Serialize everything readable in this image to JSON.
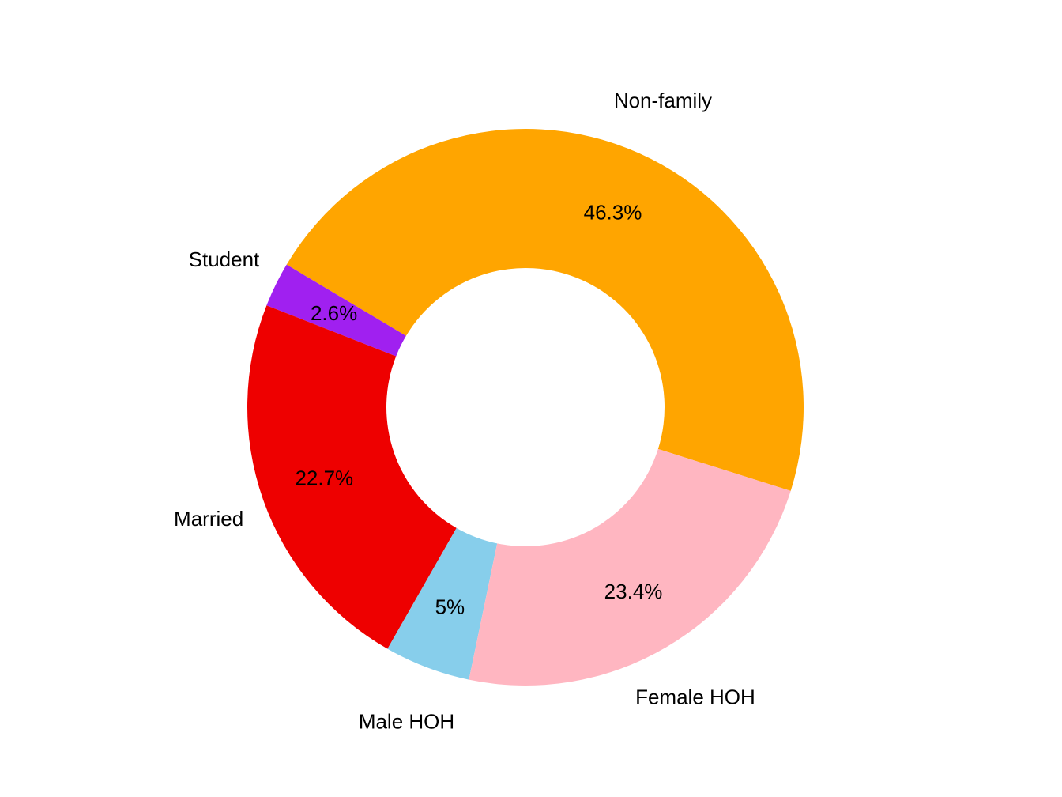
{
  "chart_data": {
    "type": "pie",
    "donut": true,
    "title": "",
    "legend": "none",
    "slices": [
      {
        "name": "Non-family",
        "value": 46.3,
        "label": "46.3%",
        "color": "#FFA500"
      },
      {
        "name": "Student",
        "value": 2.6,
        "label": "2.6%",
        "color": "#A020F0"
      },
      {
        "name": "Married",
        "value": 22.7,
        "label": "22.7%",
        "color": "#EE0000"
      },
      {
        "name": "Male HOH",
        "value": 5.0,
        "label": "5%",
        "color": "#87CEEB"
      },
      {
        "name": "Female HOH",
        "value": 23.4,
        "label": "23.4%",
        "color": "#FFB6C1"
      }
    ]
  }
}
